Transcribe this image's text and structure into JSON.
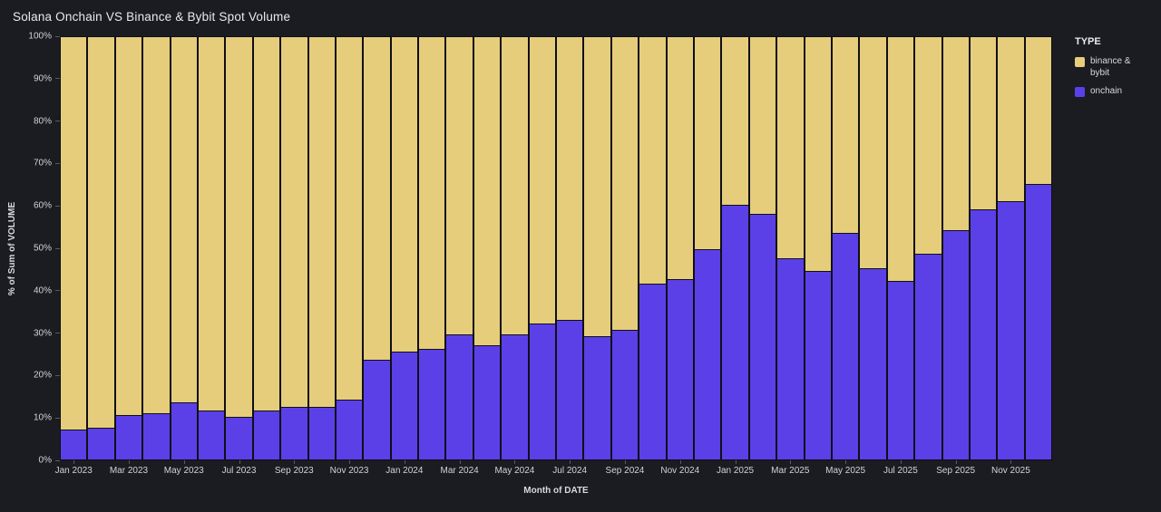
{
  "title": "Solana Onchain VS Binance & Bybit Spot Volume",
  "axes": {
    "xlabel": "Month of DATE",
    "ylabel": "% of Sum of VOLUME"
  },
  "legend": {
    "title": "TYPE",
    "items": [
      {
        "label": "binance & bybit",
        "color": "#e5cd7c"
      },
      {
        "label": "onchain",
        "color": "#5b40e8"
      }
    ]
  },
  "colors": {
    "background": "#1b1b22",
    "bar_outline": "#0f0f15",
    "binance_bybit": "#e5cd7c",
    "onchain": "#5b40e8"
  },
  "chart_data": {
    "type": "bar",
    "stacked": true,
    "title": "Solana Onchain VS Binance & Bybit Spot Volume",
    "xlabel": "Month of DATE",
    "ylabel": "% of Sum of VOLUME",
    "ylim": [
      0,
      100
    ],
    "y_tick_labels": [
      "0%",
      "10%",
      "20%",
      "30%",
      "40%",
      "50%",
      "60%",
      "70%",
      "80%",
      "90%",
      "100%"
    ],
    "x_tick_every": 2,
    "legend_position": "right",
    "grid": false,
    "categories": [
      "Jan 2023",
      "Feb 2023",
      "Mar 2023",
      "Apr 2023",
      "May 2023",
      "Jun 2023",
      "Jul 2023",
      "Aug 2023",
      "Sep 2023",
      "Oct 2023",
      "Nov 2023",
      "Dec 2023",
      "Jan 2024",
      "Feb 2024",
      "Mar 2024",
      "Apr 2024",
      "May 2024",
      "Jun 2024",
      "Jul 2024",
      "Aug 2024",
      "Sep 2024",
      "Oct 2024",
      "Nov 2024",
      "Dec 2024",
      "Jan 2025",
      "Feb 2025",
      "Mar 2025",
      "Apr 2025",
      "May 2025",
      "Jun 2025",
      "Jul 2025",
      "Aug 2025",
      "Sep 2025",
      "Oct 2025",
      "Nov 2025",
      "Dec 2025"
    ],
    "series": [
      {
        "name": "onchain",
        "color": "#5b40e8",
        "values": [
          7,
          7.5,
          10.5,
          11,
          13.5,
          11.5,
          10,
          11.5,
          12.5,
          12.5,
          14,
          23.5,
          25.5,
          26,
          29.5,
          27,
          29.5,
          32,
          33,
          29,
          30.5,
          41.5,
          42.5,
          49.5,
          60,
          58,
          47.5,
          44.5,
          53.5,
          45,
          42,
          48.5,
          54,
          59,
          61,
          65
        ]
      },
      {
        "name": "binance & bybit",
        "color": "#e5cd7c",
        "values": [
          93,
          92.5,
          89.5,
          89,
          86.5,
          88.5,
          90,
          88.5,
          87.5,
          87.5,
          86,
          76.5,
          74.5,
          74,
          70.5,
          73,
          70.5,
          68,
          67,
          71,
          69.5,
          58.5,
          57.5,
          50.5,
          40,
          42,
          52.5,
          55.5,
          46.5,
          55,
          58,
          51.5,
          46,
          41,
          39,
          35
        ]
      }
    ]
  }
}
